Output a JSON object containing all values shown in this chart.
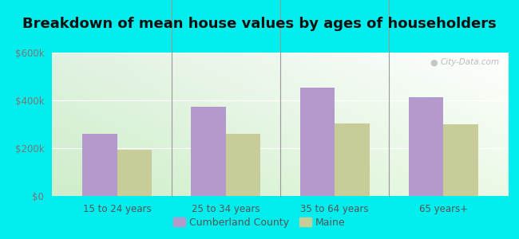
{
  "title": "Breakdown of mean house values by ages of householders",
  "categories": [
    "15 to 24 years",
    "25 to 34 years",
    "35 to 64 years",
    "65 years+"
  ],
  "cumberland_values": [
    260000,
    375000,
    455000,
    415000
  ],
  "maine_values": [
    195000,
    260000,
    305000,
    300000
  ],
  "cumberland_color": "#b399cc",
  "maine_color": "#c8cc99",
  "ylim": [
    0,
    600000
  ],
  "yticks": [
    0,
    200000,
    400000,
    600000
  ],
  "ytick_labels": [
    "$0",
    "$200k",
    "$400k",
    "$600k"
  ],
  "outer_bg": "#00eeee",
  "legend_labels": [
    "Cumberland County",
    "Maine"
  ],
  "watermark": "City-Data.com",
  "title_fontsize": 13,
  "bar_width": 0.32
}
